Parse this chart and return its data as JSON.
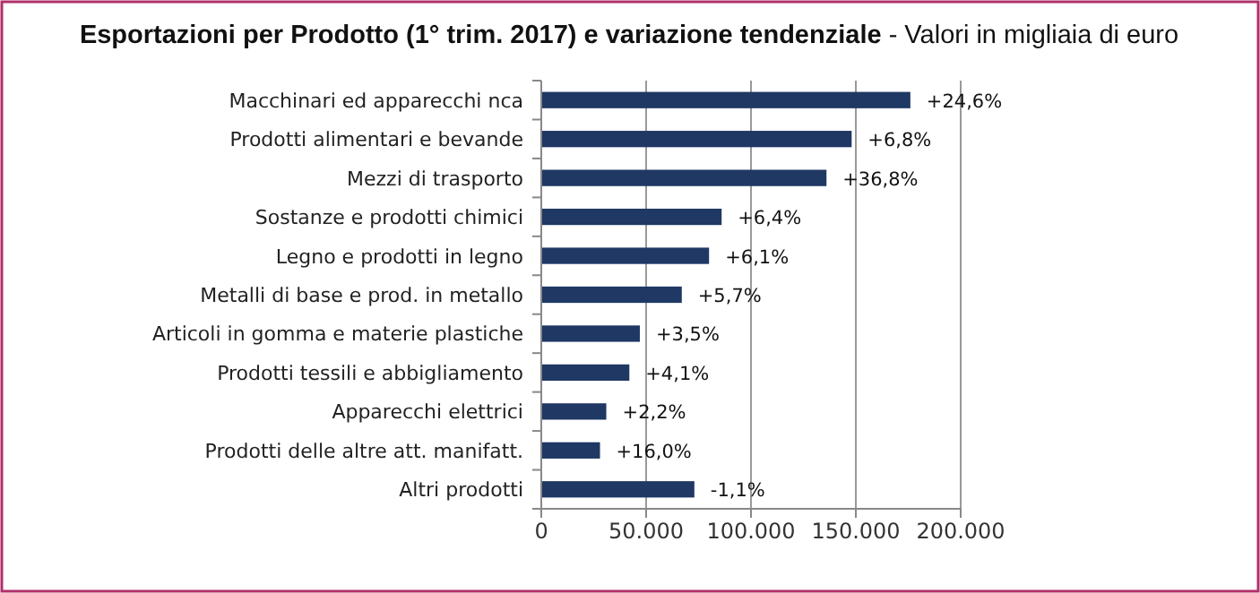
{
  "chart_data": {
    "type": "bar",
    "orientation": "horizontal",
    "title": "Esportazioni per Prodotto (1° trim. 2017) e variazione tendenziale",
    "subtitle": "- Valori in migliaia di euro",
    "categories": [
      "Macchinari ed apparecchi nca",
      "Prodotti alimentari e bevande",
      "Mezzi di trasporto",
      "Sostanze e prodotti chimici",
      "Legno e prodotti in legno",
      "Metalli di base e prod. in metallo",
      "Articoli in gomma e materie plastiche",
      "Prodotti tessili e abbigliamento",
      "Apparecchi elettrici",
      "Prodotti delle altre att. manifatt.",
      "Altri prodotti"
    ],
    "values": [
      176000,
      148000,
      136000,
      86000,
      80000,
      67000,
      47000,
      42000,
      31000,
      28000,
      73000
    ],
    "annotations": [
      {
        "text": "+24,6%",
        "x": 176000,
        "y": "Macchinari ed apparecchi nca"
      },
      {
        "text": "+6,8%",
        "x": 148000,
        "y": "Prodotti alimentari e bevande"
      },
      {
        "text": "+36,8%",
        "x": 136000,
        "y": "Mezzi di trasporto"
      },
      {
        "text": "+6,4%",
        "x": 86000,
        "y": "Sostanze e prodotti chimici"
      },
      {
        "text": "+6,1%",
        "x": 80000,
        "y": "Legno e prodotti in legno"
      },
      {
        "text": "+5,7%",
        "x": 67000,
        "y": "Metalli di base e prod. in metallo"
      },
      {
        "text": "+3,5%",
        "x": 47000,
        "y": "Articoli in gomma e materie plastiche"
      },
      {
        "text": "+4,1%",
        "x": 42000,
        "y": "Prodotti tessili e abbigliamento"
      },
      {
        "text": "+2,2%",
        "x": 31000,
        "y": "Apparecchi elettrici"
      },
      {
        "text": "+16,0%",
        "x": 28000,
        "y": "Prodotti delle altre att. manifatt."
      },
      {
        "text": "-1,1%",
        "x": 73000,
        "y": "Altri prodotti"
      }
    ],
    "color": "#1f3864",
    "xlim": [
      0,
      200000
    ],
    "xticks": [
      {
        "value": 0,
        "label": "0"
      },
      {
        "value": 50000,
        "label": "50.000"
      },
      {
        "value": 100000,
        "label": "100.000"
      },
      {
        "value": 150000,
        "label": "150.000"
      },
      {
        "value": 200000,
        "label": "200.000"
      }
    ],
    "grid": "x"
  }
}
